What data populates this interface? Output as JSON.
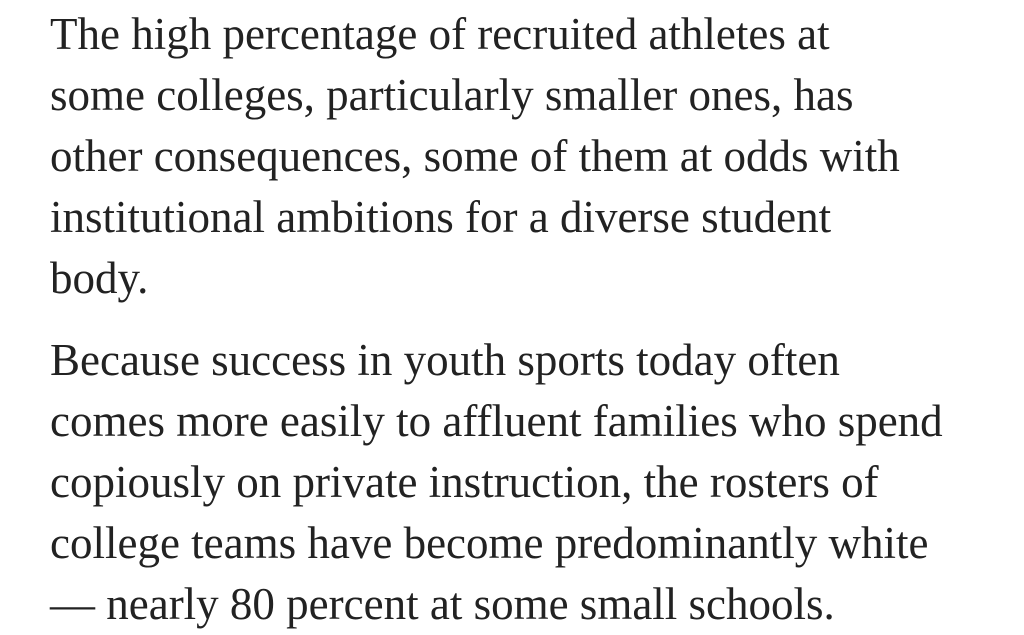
{
  "article": {
    "paragraphs": [
      {
        "lines": [
          "The high percentage of recruited athletes at",
          "some colleges, particularly smaller ones, has",
          "other consequences, some of them at odds with",
          "institutional ambitions for a diverse student",
          "body."
        ]
      },
      {
        "lines": [
          "Because success in youth sports today often",
          "comes more easily to affluent families who spend",
          "copiously on private instruction, the rosters of",
          "college teams have become predominantly white",
          "— nearly 80 percent at some small schools."
        ]
      }
    ]
  }
}
